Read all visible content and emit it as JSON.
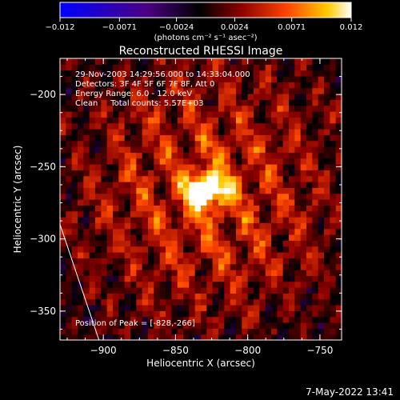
{
  "chart_data": {
    "type": "heatmap",
    "title": "Reconstructed RHESSI Image",
    "xlabel": "Heliocentric X (arcsec)",
    "ylabel": "Heliocentric Y (arcsec)",
    "xlim": [
      -930,
      -735
    ],
    "ylim": [
      -370,
      -175
    ],
    "x_ticks": [
      -900,
      -850,
      -800,
      -750
    ],
    "y_ticks": [
      -200,
      -250,
      -300,
      -350
    ],
    "colorbar": {
      "range": [
        -0.012,
        0.012
      ],
      "tick_values": [
        -0.012,
        -0.0071,
        -0.0024,
        0.0024,
        0.0071,
        0.012
      ],
      "tick_labels": [
        "−0.012",
        "−0.0071",
        "−0.0024",
        "0.0024",
        "0.0071",
        "0.012"
      ],
      "unit_label": "(photons cm⁻² s⁻¹ asec⁻²)",
      "colors": [
        "#0000ff",
        "#4b0082",
        "#000000",
        "#8b0000",
        "#ff4500",
        "#ffcc00",
        "#ffffff"
      ]
    },
    "annotations": [
      "29-Nov-2003 14:29:56.000 to 14:33:04.000",
      "Detectors: 3F 4F 5F 6F 7F 8F, Att 0",
      "Energy Range: 6.0 - 12.0 keV",
      "Clean     Total counts: 5.57E+03"
    ],
    "peak_label": "Position of Peak = [-828,-266]",
    "peak": [
      -828,
      -266
    ],
    "peak_value": 0.012,
    "limb_line": [
      [
        -930,
        -290
      ],
      [
        -903,
        -370
      ]
    ],
    "grid": false,
    "legend": "none"
  },
  "footer": {
    "timestamp": "7-May-2022 13:41"
  }
}
